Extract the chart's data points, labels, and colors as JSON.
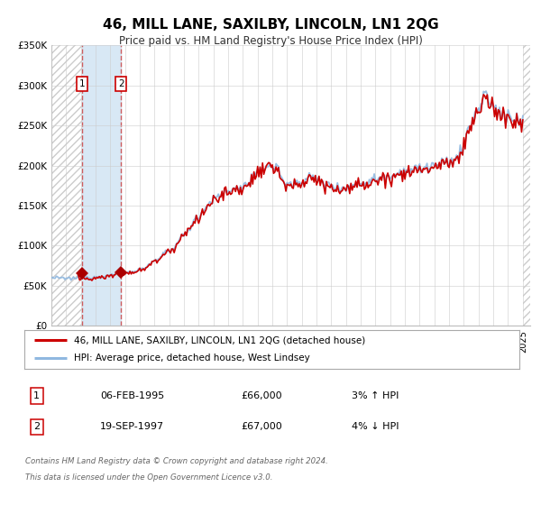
{
  "title": "46, MILL LANE, SAXILBY, LINCOLN, LN1 2QG",
  "subtitle": "Price paid vs. HM Land Registry's House Price Index (HPI)",
  "legend_line1": "46, MILL LANE, SAXILBY, LINCOLN, LN1 2QG (detached house)",
  "legend_line2": "HPI: Average price, detached house, West Lindsey",
  "transaction1_date": "06-FEB-1995",
  "transaction1_price": "£66,000",
  "transaction1_hpi": "3% ↑ HPI",
  "transaction2_date": "19-SEP-1997",
  "transaction2_price": "£67,000",
  "transaction2_hpi": "4% ↓ HPI",
  "footer1": "Contains HM Land Registry data © Crown copyright and database right 2024.",
  "footer2": "This data is licensed under the Open Government Licence v3.0.",
  "hpi_color": "#90b8e0",
  "price_color": "#cc0000",
  "dot_color": "#aa0000",
  "shaded_color": "#d8e8f5",
  "vline_color": "#cc4444",
  "background_color": "#ffffff",
  "grid_color": "#cccccc",
  "ylim_max": 350000,
  "transaction1_x": 1995.09,
  "transaction2_x": 1997.72,
  "xlim_min": 1993.0,
  "xlim_max": 2025.5
}
